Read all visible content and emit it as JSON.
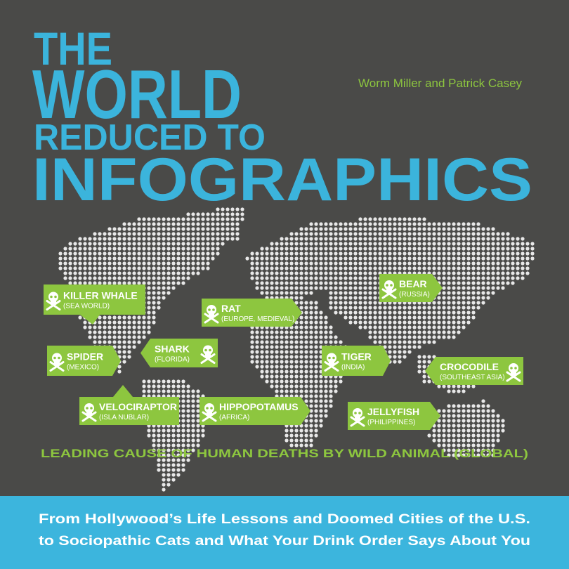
{
  "title": {
    "line1": "THE",
    "line2": "WORLD",
    "line3": "REDUCED TO",
    "line4": "INFOGRAPHICS"
  },
  "authors": "Worm Miller and Patrick Casey",
  "map": {
    "labels": [
      {
        "animal": "KILLER WHALE",
        "place": "(SEA WORLD)"
      },
      {
        "animal": "RAT",
        "place": "(EUROPE, MEDIEVAL)"
      },
      {
        "animal": "BEAR",
        "place": "(RUSSIA)"
      },
      {
        "animal": "SPIDER",
        "place": "(MEXICO)"
      },
      {
        "animal": "SHARK",
        "place": "(FLORIDA)"
      },
      {
        "animal": "TIGER",
        "place": "(INDIA)"
      },
      {
        "animal": "CROCODILE",
        "place": "(SOUTHEAST ASIA)"
      },
      {
        "animal": "VELOCIRAPTOR",
        "place": "(ISLA NUBLAR)"
      },
      {
        "animal": "HIPPOPOTAMUS",
        "place": "(AFRICA)"
      },
      {
        "animal": "JELLYFISH",
        "place": "(PHILIPPINES)"
      }
    ],
    "caption": "LEADING CAUSE OF HUMAN DEATHS BY WILD ANIMAL (GLOBAL)"
  },
  "subtitle": {
    "lines": [
      "From Hollywood’s Life Lessons and Doomed Cities of the U.S.",
      "to Sociopathic Cats and What Your Drink Order Says About You"
    ]
  }
}
